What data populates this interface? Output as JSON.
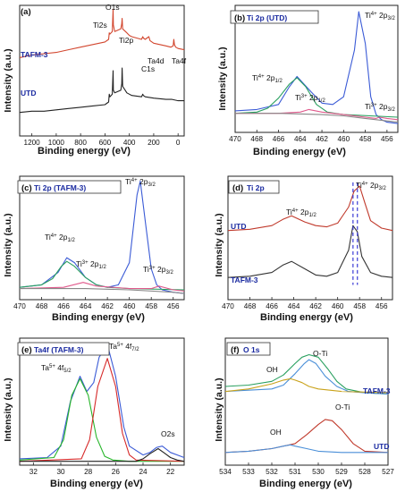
{
  "chart_data": [
    {
      "id": "a",
      "label": "(a)",
      "title": "",
      "type": "line",
      "xlabel": "Binding energy (eV)",
      "ylabel": "Intensity (a.u.)",
      "xlim": [
        1300,
        -50
      ],
      "xticks": [
        1200,
        1000,
        800,
        600,
        400,
        200,
        0
      ],
      "ylim": [
        0,
        1
      ],
      "series": [
        {
          "name": "TAFM-3",
          "color": "#d2462e",
          "x": [
            1300,
            1200,
            1100,
            1000,
            900,
            800,
            700,
            600,
            570,
            565,
            560,
            540,
            533,
            531,
            520,
            470,
            462,
            459,
            455,
            420,
            400,
            380,
            300,
            290,
            285,
            270,
            240,
            230,
            200,
            100,
            60,
            40,
            35,
            30,
            20,
            0,
            -50
          ],
          "y": [
            0.6,
            0.62,
            0.63,
            0.64,
            0.66,
            0.68,
            0.7,
            0.72,
            0.74,
            0.79,
            0.78,
            0.8,
            0.97,
            0.85,
            0.8,
            0.82,
            0.86,
            0.9,
            0.82,
            0.79,
            0.77,
            0.76,
            0.74,
            0.76,
            0.75,
            0.74,
            0.76,
            0.73,
            0.71,
            0.69,
            0.68,
            0.69,
            0.74,
            0.7,
            0.68,
            0.67,
            0.66
          ]
        },
        {
          "name": "UTD",
          "color": "#222222",
          "x": [
            1300,
            1200,
            1100,
            1000,
            900,
            800,
            700,
            600,
            570,
            565,
            560,
            540,
            533,
            531,
            520,
            470,
            462,
            459,
            455,
            420,
            400,
            380,
            300,
            290,
            285,
            270,
            200,
            100,
            50,
            0,
            -50
          ],
          "y": [
            0.18,
            0.19,
            0.19,
            0.2,
            0.21,
            0.22,
            0.23,
            0.24,
            0.26,
            0.32,
            0.3,
            0.32,
            0.5,
            0.35,
            0.33,
            0.35,
            0.4,
            0.52,
            0.38,
            0.33,
            0.32,
            0.31,
            0.3,
            0.32,
            0.31,
            0.3,
            0.29,
            0.28,
            0.28,
            0.27,
            0.27
          ]
        }
      ],
      "annotations": [
        "O1s",
        "Ti2s",
        "Ti2p",
        "C1s",
        "Ta4d",
        "Ta4f"
      ]
    },
    {
      "id": "b",
      "label": "(b)",
      "title": "Ti 2p (UTD)",
      "type": "line",
      "xlabel": "Binding energy (eV)",
      "ylabel": "Intensity (a.u.)",
      "xlim": [
        470,
        455
      ],
      "xticks": [
        470,
        468,
        466,
        464,
        462,
        460,
        458,
        456
      ],
      "ylim": [
        0,
        1
      ],
      "series": [
        {
          "name": "",
          "color": "#3b5bd6",
          "x": [
            470,
            468,
            466,
            465,
            464.3,
            463,
            462,
            461,
            460,
            459,
            458.6,
            458,
            457.5,
            457,
            456.5,
            456,
            455
          ],
          "y": [
            0.17,
            0.18,
            0.22,
            0.36,
            0.44,
            0.32,
            0.23,
            0.22,
            0.28,
            0.65,
            0.95,
            0.7,
            0.28,
            0.14,
            0.1,
            0.08,
            0.07
          ]
        },
        {
          "name": "",
          "color": "#2aa060",
          "x": [
            470,
            468,
            467,
            466,
            465,
            464.3,
            463.5,
            462.5,
            461.5,
            460,
            455
          ],
          "y": [
            0.15,
            0.16,
            0.19,
            0.27,
            0.38,
            0.43,
            0.36,
            0.22,
            0.16,
            0.14,
            0.12
          ]
        },
        {
          "name": "",
          "color": "#e05a8c",
          "x": [
            470,
            468,
            466,
            464,
            463.2,
            462,
            460,
            458,
            457,
            456.7,
            456,
            455
          ],
          "y": [
            0.15,
            0.15,
            0.15,
            0.16,
            0.18,
            0.16,
            0.14,
            0.12,
            0.11,
            0.12,
            0.11,
            0.1
          ]
        },
        {
          "name": "",
          "color": "#888888",
          "x": [
            470,
            466,
            462,
            460,
            458,
            456,
            455
          ],
          "y": [
            0.15,
            0.15,
            0.14,
            0.13,
            0.11,
            0.09,
            0.08
          ]
        }
      ],
      "annotations": [
        "Ti4+ 2p3/2",
        "Ti4+ 2p1/2",
        "Ti3+ 2p1/2",
        "Ti3+ 2p3/2"
      ]
    },
    {
      "id": "c",
      "label": "(c)",
      "title": "Ti 2p (TAFM-3)",
      "type": "line",
      "xlabel": "Binding energy (eV)",
      "ylabel": "Intensity (a.u.)",
      "xlim": [
        470,
        455
      ],
      "xticks": [
        470,
        468,
        466,
        464,
        462,
        460,
        458,
        456
      ],
      "ylim": [
        0,
        1
      ],
      "series": [
        {
          "name": "",
          "color": "#3b5bd6",
          "x": [
            470,
            468,
            466.5,
            465.7,
            465,
            464,
            463,
            462,
            461,
            460,
            459.3,
            459,
            458.5,
            458,
            457.5,
            457,
            456,
            455
          ],
          "y": [
            0.1,
            0.12,
            0.22,
            0.34,
            0.3,
            0.18,
            0.12,
            0.1,
            0.12,
            0.3,
            0.85,
            0.96,
            0.6,
            0.25,
            0.12,
            0.08,
            0.06,
            0.05
          ]
        },
        {
          "name": "",
          "color": "#2aa060",
          "x": [
            470,
            468,
            467,
            466.2,
            465.7,
            465,
            464,
            463,
            462,
            460,
            455
          ],
          "y": [
            0.1,
            0.12,
            0.17,
            0.27,
            0.31,
            0.27,
            0.18,
            0.12,
            0.1,
            0.09,
            0.08
          ]
        },
        {
          "name": "",
          "color": "#e05a8c",
          "x": [
            470,
            466,
            464.2,
            463,
            460,
            458,
            457.3,
            456,
            455
          ],
          "y": [
            0.09,
            0.1,
            0.14,
            0.11,
            0.09,
            0.09,
            0.11,
            0.08,
            0.07
          ]
        },
        {
          "name": "",
          "color": "#888888",
          "x": [
            470,
            464,
            460,
            456,
            455
          ],
          "y": [
            0.09,
            0.09,
            0.08,
            0.06,
            0.05
          ]
        }
      ],
      "annotations": [
        "Ti4+ 2p3/2",
        "Ti4+ 2p1/2",
        "Ti3+ 2p1/2",
        "Ti3+ 2p3/2"
      ]
    },
    {
      "id": "d",
      "label": "(d)",
      "title": "Ti 2p",
      "type": "line",
      "xlabel": "Binding energy (eV)",
      "ylabel": "Intensity (a.u.)",
      "xlim": [
        470,
        455
      ],
      "xticks": [
        470,
        468,
        466,
        464,
        462,
        460,
        458,
        456
      ],
      "ylim": [
        0,
        1
      ],
      "series": [
        {
          "name": "UTD",
          "color": "#c0392b",
          "x": [
            470,
            468,
            466,
            465,
            464.2,
            463,
            462,
            461,
            460,
            459,
            458.5,
            458,
            457.5,
            457,
            456,
            455
          ],
          "y": [
            0.56,
            0.57,
            0.6,
            0.65,
            0.68,
            0.63,
            0.6,
            0.59,
            0.62,
            0.75,
            0.88,
            0.92,
            0.78,
            0.64,
            0.58,
            0.56
          ]
        },
        {
          "name": "TAFM-3",
          "color": "#333333",
          "x": [
            470,
            468,
            466,
            465,
            464.2,
            463,
            462,
            461,
            460,
            459,
            458.6,
            458.2,
            457.8,
            457,
            456,
            455
          ],
          "y": [
            0.18,
            0.19,
            0.22,
            0.28,
            0.31,
            0.25,
            0.2,
            0.19,
            0.22,
            0.4,
            0.6,
            0.55,
            0.35,
            0.22,
            0.19,
            0.18
          ]
        }
      ],
      "annotations": [
        "Ti4+ 2p3/2",
        "Ti4+ 2p1/2"
      ]
    },
    {
      "id": "e",
      "label": "(e)",
      "title": "Ta4f (TAFM-3)",
      "type": "line",
      "xlabel": "Binding energy (eV)",
      "ylabel": "Intensity (a.u.)",
      "xlim": [
        33,
        21
      ],
      "xticks": [
        32,
        30,
        28,
        26,
        24,
        22
      ],
      "ylim": [
        0,
        1
      ],
      "series": [
        {
          "name": "",
          "color": "#3b5bd6",
          "x": [
            33,
            31,
            30,
            29.3,
            28.6,
            28.1,
            27.6,
            27.2,
            26.6,
            26.0,
            25.4,
            25,
            24,
            23.5,
            23,
            22.6,
            22,
            21
          ],
          "y": [
            0.05,
            0.06,
            0.15,
            0.5,
            0.7,
            0.58,
            0.65,
            0.85,
            0.95,
            0.7,
            0.3,
            0.15,
            0.08,
            0.1,
            0.14,
            0.15,
            0.1,
            0.06
          ]
        },
        {
          "name": "",
          "color": "#27b52a",
          "x": [
            33,
            30.5,
            29.8,
            29.2,
            28.6,
            28.0,
            27.4,
            26.8,
            26.2,
            25,
            21
          ],
          "y": [
            0.04,
            0.06,
            0.2,
            0.55,
            0.68,
            0.55,
            0.22,
            0.07,
            0.04,
            0.03,
            0.03
          ]
        },
        {
          "name": "",
          "color": "#d62a2a",
          "x": [
            33,
            28.5,
            27.9,
            27.3,
            26.6,
            26.0,
            25.5,
            25,
            24.5,
            21
          ],
          "y": [
            0.03,
            0.05,
            0.2,
            0.62,
            0.84,
            0.62,
            0.25,
            0.08,
            0.04,
            0.03
          ]
        },
        {
          "name": "",
          "color": "#222222",
          "x": [
            33,
            24.5,
            24,
            23.5,
            22.9,
            22.5,
            22,
            21.5,
            21
          ],
          "y": [
            0.03,
            0.03,
            0.05,
            0.09,
            0.13,
            0.1,
            0.06,
            0.04,
            0.03
          ]
        }
      ],
      "annotations": [
        "Ta5+ 4f7/2",
        "Ta5+ 4f5/2",
        "O2s"
      ]
    },
    {
      "id": "f",
      "label": "(f)",
      "title": "O 1s",
      "type": "line",
      "xlabel": "Binding energy (eV)",
      "ylabel": "Intensity (a.u.)",
      "xlim": [
        534,
        527
      ],
      "xticks": [
        534,
        533,
        532,
        531,
        530,
        529,
        528,
        527
      ],
      "ylim": [
        0,
        1
      ],
      "series": [
        {
          "name": "TAFM-3",
          "color": "#2aa060",
          "x": [
            534,
            533,
            532,
            531.5,
            531,
            530.7,
            530.4,
            530,
            529.6,
            529.2,
            528.8,
            528,
            527
          ],
          "y": [
            0.62,
            0.63,
            0.66,
            0.71,
            0.8,
            0.85,
            0.87,
            0.85,
            0.76,
            0.66,
            0.6,
            0.57,
            0.56
          ]
        },
        {
          "name": "TAFM-3",
          "color": "#4a8fd8",
          "x": [
            534,
            533,
            532,
            531.5,
            531,
            530.6,
            530.4,
            530.1,
            529.7,
            529.2,
            528.7,
            528,
            527
          ],
          "y": [
            0.58,
            0.59,
            0.6,
            0.63,
            0.72,
            0.8,
            0.83,
            0.8,
            0.7,
            0.62,
            0.58,
            0.57,
            0.56
          ]
        },
        {
          "name": "TAFM-3",
          "color": "#c9a21a",
          "x": [
            534,
            533,
            532,
            531.5,
            531.2,
            531,
            530.7,
            530.4,
            530,
            529,
            527
          ],
          "y": [
            0.58,
            0.6,
            0.64,
            0.67,
            0.68,
            0.67,
            0.65,
            0.62,
            0.6,
            0.58,
            0.57
          ]
        },
        {
          "name": "UTD",
          "color": "#c0392b",
          "x": [
            534,
            533,
            532,
            531,
            530.5,
            530,
            529.7,
            529.4,
            529,
            528.5,
            528,
            527
          ],
          "y": [
            0.1,
            0.11,
            0.13,
            0.17,
            0.24,
            0.32,
            0.36,
            0.35,
            0.28,
            0.17,
            0.11,
            0.1
          ]
        },
        {
          "name": "UTD",
          "color": "#4a8fd8",
          "x": [
            534,
            533,
            532,
            531.5,
            531.2,
            531,
            530.5,
            530,
            529,
            528,
            527
          ],
          "y": [
            0.1,
            0.11,
            0.13,
            0.15,
            0.16,
            0.15,
            0.13,
            0.11,
            0.1,
            0.1,
            0.1
          ]
        }
      ],
      "annotations": [
        "O-Ti",
        "OH",
        "O-Ti",
        "OH"
      ]
    }
  ],
  "text": {
    "a_label": "(a)",
    "b_label": "(b)",
    "b_title": "Ti 2p (UTD)",
    "c_label": "(c)",
    "c_title": "Ti 2p (TAFM-3)",
    "d_label": "(d)",
    "d_title": "Ti 2p",
    "e_label": "(e)",
    "e_title": "Ta4f (TAFM-3)",
    "f_label": "(f)",
    "f_title": "O 1s",
    "xlabel": "Binding energy (eV)",
    "ylabel": "Intensity (a.u.)",
    "tafm3": "TAFM-3",
    "utd": "UTD",
    "o1s": "O1s",
    "ti2s": "Ti2s",
    "ti2p": "Ti2p",
    "c1s": "C1s",
    "ta4d": "Ta4d",
    "ta4f": "Ta4f",
    "ti4": "Ti",
    "ti4sup": "4+",
    "p32": " 2p",
    "p32sub": "3/2",
    "p12sub": "1/2",
    "ti3sup": "3+",
    "ta5": "Ta",
    "ta5sup": "5+",
    "f72": " 4f",
    "f72sub": "7/2",
    "f52sub": "5/2",
    "o2s": "O2s",
    "oti": "O-Ti",
    "oh": "OH"
  }
}
